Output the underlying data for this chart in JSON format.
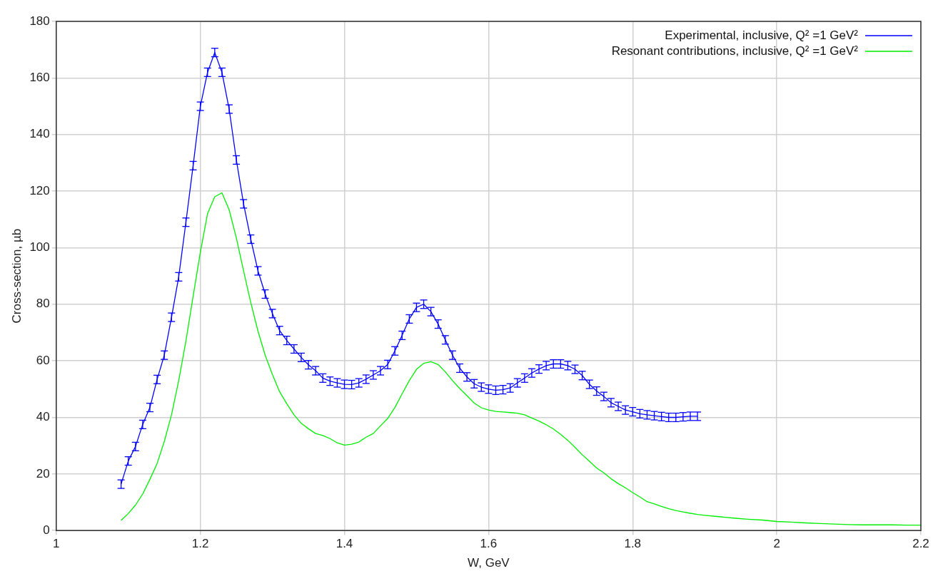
{
  "chart_data": {
    "type": "line",
    "xlabel": "W, GeV",
    "ylabel": "Cross-section, µb",
    "xlim": [
      1,
      2.2
    ],
    "xticks": [
      1,
      1.2,
      1.4,
      1.6,
      1.8,
      2,
      2.2
    ],
    "ylim": [
      0,
      180
    ],
    "yticks": [
      0,
      20,
      40,
      60,
      80,
      100,
      120,
      140,
      160,
      180
    ],
    "grid": true,
    "legend": "top right",
    "line_style": "solid",
    "series": [
      {
        "name": "Experimental, inclusive, Q² =1 GeV²",
        "color": "#0000ff",
        "x": [
          1.09,
          1.1,
          1.11,
          1.12,
          1.13,
          1.14,
          1.15,
          1.16,
          1.17,
          1.18,
          1.19,
          1.2,
          1.21,
          1.22,
          1.23,
          1.24,
          1.25,
          1.26,
          1.27,
          1.28,
          1.29,
          1.3,
          1.31,
          1.32,
          1.33,
          1.34,
          1.35,
          1.36,
          1.37,
          1.38,
          1.39,
          1.4,
          1.41,
          1.42,
          1.43,
          1.44,
          1.45,
          1.46,
          1.47,
          1.48,
          1.49,
          1.5,
          1.51,
          1.52,
          1.53,
          1.54,
          1.55,
          1.56,
          1.57,
          1.58,
          1.59,
          1.6,
          1.61,
          1.62,
          1.63,
          1.64,
          1.65,
          1.66,
          1.67,
          1.68,
          1.69,
          1.7,
          1.71,
          1.72,
          1.73,
          1.74,
          1.75,
          1.76,
          1.77,
          1.78,
          1.79,
          1.8,
          1.81,
          1.82,
          1.83,
          1.84,
          1.85,
          1.86,
          1.87,
          1.88,
          1.89
        ],
        "values": [
          16.4,
          24.6,
          29.7,
          37.5,
          43.5,
          53.4,
          62,
          75.4,
          89.7,
          109,
          129,
          150,
          162,
          169,
          162,
          149,
          131,
          115.5,
          103,
          91.8,
          83.6,
          76.7,
          70.7,
          67.2,
          64.2,
          61.2,
          58.6,
          56.5,
          53.9,
          52.8,
          52.2,
          51.7,
          51.6,
          52.2,
          53.5,
          55,
          56.5,
          58.7,
          63.5,
          69,
          74.8,
          78.9,
          80,
          77.4,
          73,
          67.4,
          62,
          57.4,
          54.3,
          51.9,
          50.7,
          50,
          49.6,
          49.8,
          50.4,
          52.2,
          53.9,
          55.7,
          57.1,
          58.3,
          58.9,
          58.9,
          58.3,
          57,
          54.8,
          51.7,
          49.3,
          47.4,
          45.2,
          43.9,
          42.6,
          42,
          41.3,
          40.9,
          40.6,
          40.3,
          40,
          40,
          40.2,
          40.4,
          40.4
        ],
        "errors": [
          1.5,
          1.5,
          1.5,
          1.5,
          1.5,
          1.5,
          1.5,
          1.5,
          1.5,
          1.5,
          1.5,
          1.5,
          1.5,
          1.5,
          1.5,
          1.5,
          1.5,
          1.5,
          1.5,
          1.5,
          1.5,
          1.5,
          1.5,
          1.5,
          1.5,
          1.5,
          1.5,
          1.5,
          1.5,
          1.5,
          1.5,
          1.5,
          1.5,
          1.5,
          1.5,
          1.5,
          1.5,
          1.5,
          1.5,
          1.5,
          1.5,
          1.5,
          1.5,
          1.5,
          1.5,
          1.5,
          1.5,
          1.5,
          1.5,
          1.5,
          1.5,
          1.5,
          1.5,
          1.5,
          1.5,
          1.5,
          1.5,
          1.5,
          1.5,
          1.5,
          1.5,
          1.5,
          1.5,
          1.5,
          1.5,
          1.5,
          1.5,
          1.5,
          1.5,
          1.5,
          1.5,
          1.5,
          1.5,
          1.5,
          1.5,
          1.5,
          1.5,
          1.5,
          1.5,
          1.5,
          1.5
        ]
      },
      {
        "name": "Resonant contributions, inclusive, Q² =1 GeV²",
        "color": "#00ee00",
        "x": [
          1.09,
          1.1,
          1.11,
          1.12,
          1.13,
          1.14,
          1.15,
          1.16,
          1.17,
          1.18,
          1.19,
          1.2,
          1.21,
          1.22,
          1.23,
          1.24,
          1.25,
          1.26,
          1.27,
          1.28,
          1.29,
          1.3,
          1.31,
          1.32,
          1.33,
          1.34,
          1.35,
          1.36,
          1.37,
          1.38,
          1.39,
          1.4,
          1.41,
          1.42,
          1.43,
          1.44,
          1.45,
          1.46,
          1.47,
          1.48,
          1.49,
          1.5,
          1.51,
          1.52,
          1.53,
          1.54,
          1.55,
          1.56,
          1.57,
          1.58,
          1.59,
          1.6,
          1.61,
          1.62,
          1.63,
          1.64,
          1.65,
          1.66,
          1.67,
          1.68,
          1.69,
          1.7,
          1.71,
          1.72,
          1.73,
          1.74,
          1.75,
          1.76,
          1.77,
          1.78,
          1.79,
          1.8,
          1.81,
          1.82,
          1.83,
          1.84,
          1.85,
          1.86,
          1.87,
          1.88,
          1.89,
          1.9,
          1.92,
          1.94,
          1.96,
          1.98,
          2,
          2.02,
          2.04,
          2.06,
          2.08,
          2.1,
          2.12,
          2.14,
          2.16,
          2.18,
          2.2
        ],
        "values": [
          3.6,
          6,
          9,
          12.9,
          18.1,
          23.7,
          31.5,
          40.9,
          53,
          67,
          82.8,
          98.4,
          112,
          118,
          119.4,
          113.4,
          103.4,
          91.8,
          80.6,
          70.5,
          62,
          55.2,
          49.1,
          44.8,
          40.9,
          37.9,
          36,
          34.3,
          33.6,
          32.5,
          31,
          30.2,
          30.5,
          31.3,
          33,
          34.3,
          37,
          39.6,
          43.5,
          48.3,
          53,
          57,
          59.1,
          59.7,
          58.7,
          56.1,
          53,
          50.2,
          47.7,
          45.1,
          43.4,
          42.6,
          42.1,
          41.9,
          41.7,
          41.5,
          40.9,
          39.8,
          38.7,
          37.4,
          35.9,
          34,
          31.9,
          29.4,
          26.8,
          24.5,
          22.1,
          20.4,
          18.3,
          16.6,
          15.1,
          13.4,
          11.9,
          10.2,
          9.4,
          8.5,
          7.7,
          7.1,
          6.6,
          6.1,
          5.7,
          5.4,
          4.9,
          4.4,
          4,
          3.7,
          3.2,
          3,
          2.7,
          2.5,
          2.3,
          2.1,
          2,
          2,
          2,
          1.9,
          1.9
        ]
      }
    ]
  }
}
